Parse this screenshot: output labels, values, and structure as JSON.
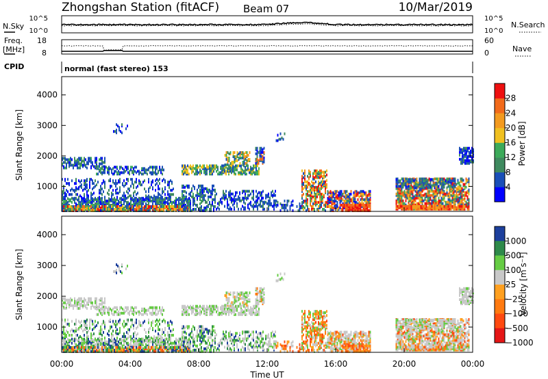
{
  "header": {
    "station": "Zhongshan Station (fitACF)",
    "beam": "Beam 07",
    "date": "10/Mar/2019"
  },
  "strips": {
    "nsky_label": "N.Sky",
    "nsearch_label": "N.Search",
    "nsky_ticks": [
      "10^5",
      "10^0"
    ],
    "freq_label": "Freq.",
    "freq_unit": "[MHz]",
    "freq_ticks": [
      "18",
      "8"
    ],
    "nave_label": "Nave",
    "nave_ticks": [
      "60",
      "0"
    ],
    "cpid_label": "CPID",
    "cpid_value": "normal (fast stereo) 153"
  },
  "colors": {
    "power": [
      "#0000ff",
      "#1a4fb8",
      "#3f8a5f",
      "#3daa5a",
      "#f0c020",
      "#f39a1f",
      "#f26a1a",
      "#ee1010"
    ],
    "velocity": [
      "#e51616",
      "#ff4a10",
      "#ff7a10",
      "#ffa020",
      "#c8c8c8",
      "#66cc44",
      "#2e8a4a",
      "#1c3f9c"
    ]
  },
  "chart_data": [
    {
      "type": "heatmap",
      "name": "power",
      "ylabel": "Slant Range [km]",
      "ylim": [
        180,
        4600
      ],
      "yticks": [
        "1000",
        "2000",
        "3000",
        "4000"
      ],
      "xlim": [
        0,
        24
      ],
      "colorbar_title": "Power [dB]",
      "colorbar_ticks": [
        "4",
        "8",
        "12",
        "16",
        "20",
        "24",
        "28"
      ]
    },
    {
      "type": "heatmap",
      "name": "velocity",
      "ylabel": "Slant Range [km]",
      "ylim": [
        180,
        4600
      ],
      "yticks": [
        "1000",
        "2000",
        "3000",
        "4000"
      ],
      "xlim": [
        0,
        24
      ],
      "xticks": [
        "00:00",
        "04:00",
        "08:00",
        "12:00",
        "16:00",
        "20:00",
        "00:00"
      ],
      "xlabel": "Time UT",
      "colorbar_title": "Velocity [m s⁻¹]",
      "colorbar_ticks": [
        "1000",
        "500",
        "100",
        "25",
        "−25",
        "−100",
        "−500",
        "−1000"
      ]
    }
  ]
}
